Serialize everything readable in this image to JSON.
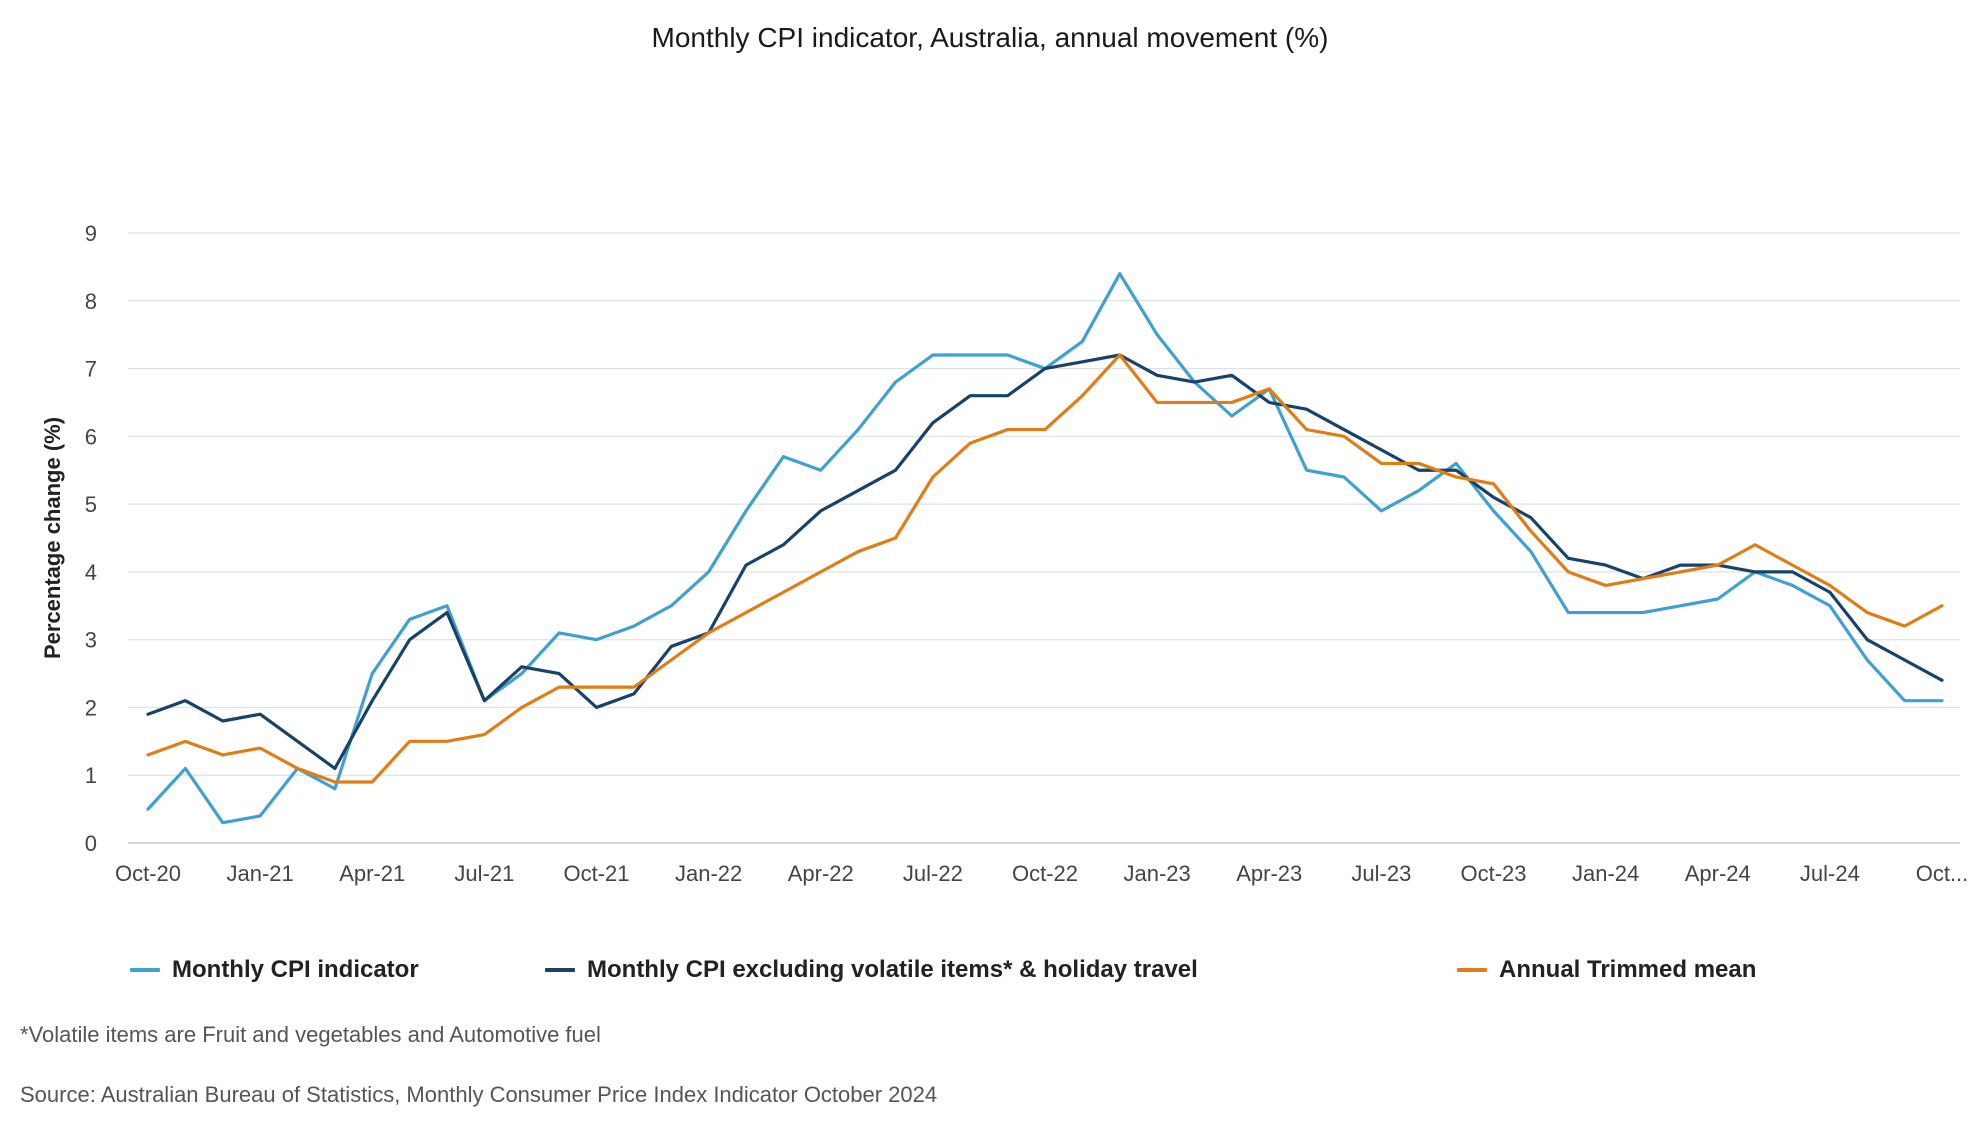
{
  "chart_data": {
    "type": "line",
    "title": "Monthly CPI indicator, Australia, annual movement (%)",
    "xlabel": "",
    "ylabel": "Percentage change (%)",
    "ylim": [
      0,
      9
    ],
    "yticks": [
      "0",
      "1",
      "2",
      "3",
      "4",
      "5",
      "6",
      "7",
      "8",
      "9"
    ],
    "grid": true,
    "legend_position": "bottom",
    "x": [
      "Oct-20",
      "Nov-20",
      "Dec-20",
      "Jan-21",
      "Feb-21",
      "Mar-21",
      "Apr-21",
      "May-21",
      "Jun-21",
      "Jul-21",
      "Aug-21",
      "Sep-21",
      "Oct-21",
      "Nov-21",
      "Dec-21",
      "Jan-22",
      "Feb-22",
      "Mar-22",
      "Apr-22",
      "May-22",
      "Jun-22",
      "Jul-22",
      "Aug-22",
      "Sep-22",
      "Oct-22",
      "Nov-22",
      "Dec-22",
      "Jan-23",
      "Feb-23",
      "Mar-23",
      "Apr-23",
      "May-23",
      "Jun-23",
      "Jul-23",
      "Aug-23",
      "Sep-23",
      "Oct-23",
      "Nov-23",
      "Dec-23",
      "Jan-24",
      "Feb-24",
      "Mar-24",
      "Apr-24",
      "May-24",
      "Jun-24",
      "Jul-24",
      "Aug-24",
      "Sep-24",
      "Oct-24"
    ],
    "xtick_labels": [
      {
        "index": 0,
        "label": "Oct-20"
      },
      {
        "index": 3,
        "label": "Jan-21"
      },
      {
        "index": 6,
        "label": "Apr-21"
      },
      {
        "index": 9,
        "label": "Jul-21"
      },
      {
        "index": 12,
        "label": "Oct-21"
      },
      {
        "index": 15,
        "label": "Jan-22"
      },
      {
        "index": 18,
        "label": "Apr-22"
      },
      {
        "index": 21,
        "label": "Jul-22"
      },
      {
        "index": 24,
        "label": "Oct-22"
      },
      {
        "index": 27,
        "label": "Jan-23"
      },
      {
        "index": 30,
        "label": "Apr-23"
      },
      {
        "index": 33,
        "label": "Jul-23"
      },
      {
        "index": 36,
        "label": "Oct-23"
      },
      {
        "index": 39,
        "label": "Jan-24"
      },
      {
        "index": 42,
        "label": "Apr-24"
      },
      {
        "index": 45,
        "label": "Jul-24"
      },
      {
        "index": 48,
        "label": "Oct..."
      }
    ],
    "series": [
      {
        "name": "Monthly CPI indicator",
        "color": "#3fa0d2",
        "values": [
          0.5,
          1.1,
          0.3,
          0.4,
          1.1,
          0.8,
          2.5,
          3.3,
          3.5,
          2.1,
          2.5,
          3.1,
          3.0,
          3.2,
          3.5,
          4.0,
          4.9,
          5.7,
          5.5,
          6.1,
          6.8,
          7.2,
          7.2,
          7.2,
          7.0,
          7.4,
          8.4,
          7.5,
          6.8,
          6.3,
          6.7,
          5.5,
          5.4,
          4.9,
          5.2,
          5.6,
          4.9,
          4.3,
          3.4,
          3.4,
          3.4,
          3.5,
          3.6,
          4.0,
          3.8,
          3.5,
          2.7,
          2.1,
          2.1
        ]
      },
      {
        "name": "Monthly CPI excluding volatile items* & holiday travel",
        "color": "#17436b",
        "values": [
          1.9,
          2.1,
          1.8,
          1.9,
          1.5,
          1.1,
          2.1,
          3.0,
          3.4,
          2.1,
          2.6,
          2.5,
          2.0,
          2.2,
          2.9,
          3.1,
          4.1,
          4.4,
          4.9,
          5.2,
          5.5,
          6.2,
          6.6,
          6.6,
          7.0,
          7.1,
          7.2,
          6.9,
          6.8,
          6.9,
          6.5,
          6.4,
          6.1,
          5.8,
          5.5,
          5.5,
          5.1,
          4.8,
          4.2,
          4.1,
          3.9,
          4.1,
          4.1,
          4.0,
          4.0,
          3.7,
          3.0,
          2.7,
          2.4
        ]
      },
      {
        "name": "Annual Trimmed mean",
        "color": "#e07d15",
        "values": [
          1.3,
          1.5,
          1.3,
          1.4,
          1.1,
          0.9,
          0.9,
          1.5,
          1.5,
          1.6,
          2.0,
          2.3,
          2.3,
          2.3,
          2.7,
          3.1,
          3.4,
          3.7,
          4.0,
          4.3,
          4.5,
          5.4,
          5.9,
          6.1,
          6.1,
          6.6,
          7.2,
          6.5,
          6.5,
          6.5,
          6.7,
          6.1,
          6.0,
          5.6,
          5.6,
          5.4,
          5.3,
          4.6,
          4.0,
          3.8,
          3.9,
          4.0,
          4.1,
          4.4,
          4.1,
          3.8,
          3.4,
          3.2,
          3.5
        ]
      }
    ]
  },
  "footnote": "*Volatile items are Fruit and vegetables and Automotive fuel",
  "source": "Source: Australian Bureau of Statistics, Monthly Consumer Price Index Indicator October 2024"
}
